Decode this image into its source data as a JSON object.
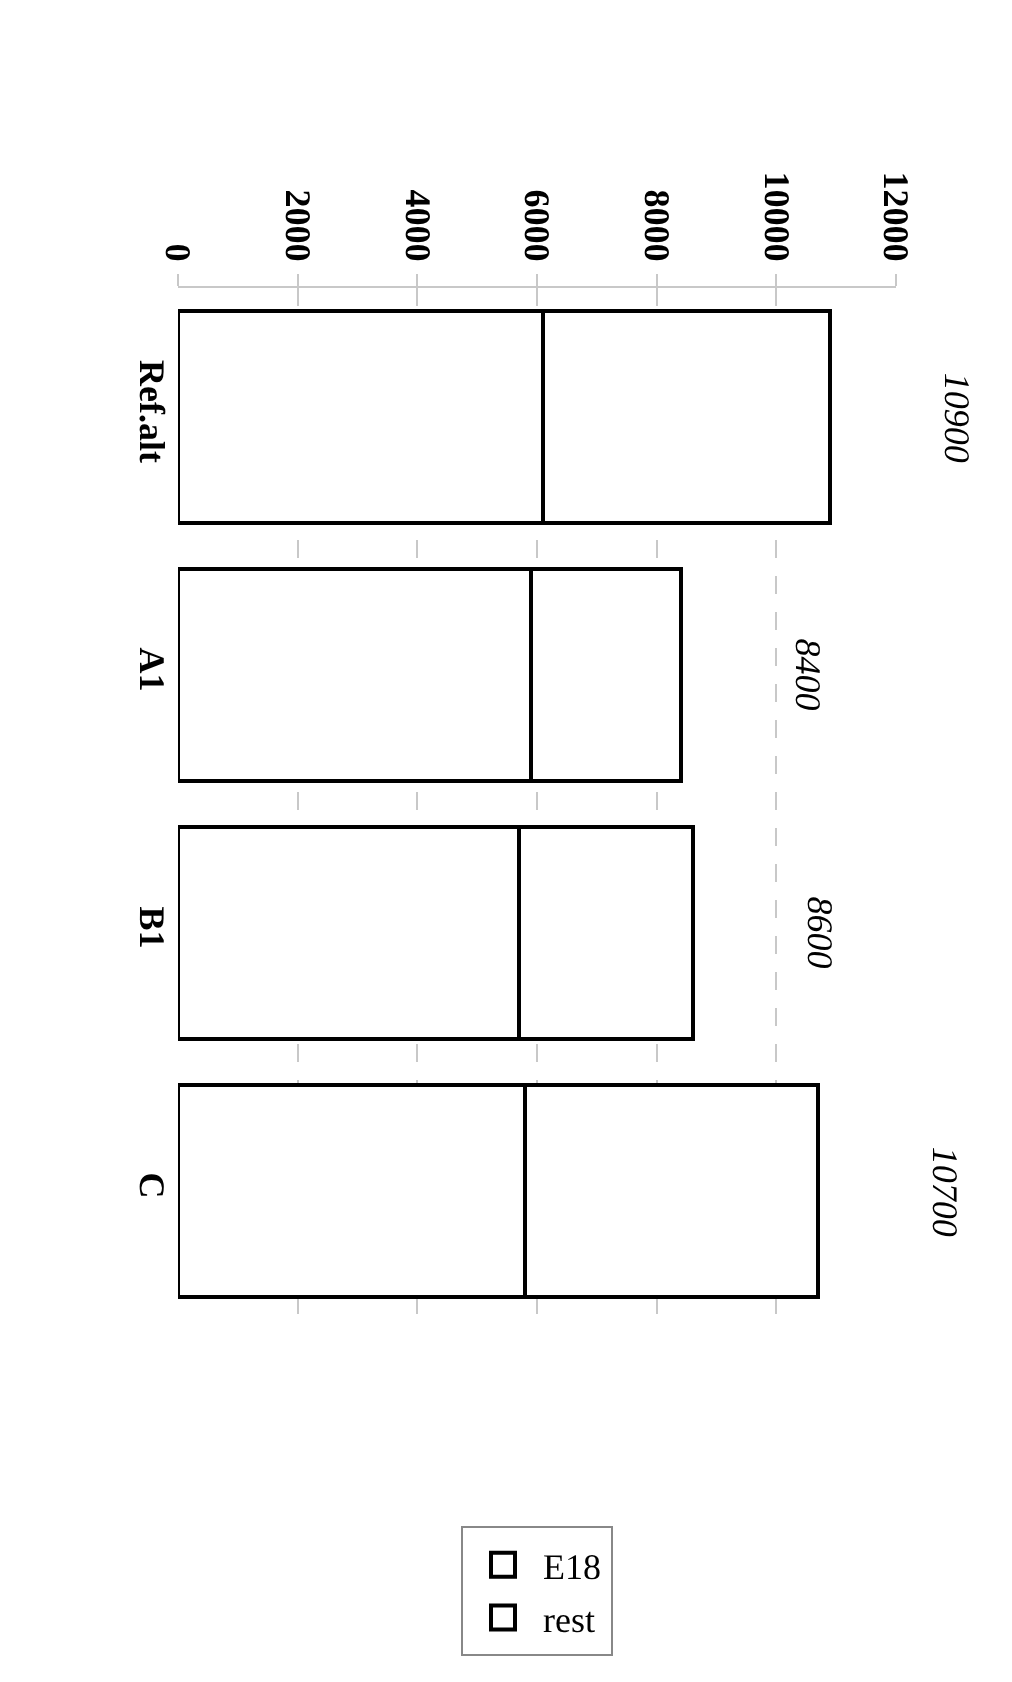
{
  "chart_data": {
    "type": "bar",
    "stacked": true,
    "orientation": "horizontal",
    "categories": [
      "Ref.alt",
      "A1",
      "B1",
      "C"
    ],
    "series": [
      {
        "name": "E18",
        "color": "#ffffff",
        "values": [
          6100,
          5900,
          5700,
          5800
        ]
      },
      {
        "name": "rest",
        "color": "#ffffff",
        "values": [
          4800,
          2500,
          2900,
          4900
        ]
      }
    ],
    "totals": [
      "10900",
      "8400",
      "8600",
      "10700"
    ],
    "xlim": [
      0,
      12000
    ],
    "xticks": [
      0,
      2000,
      4000,
      6000,
      8000,
      10000,
      12000
    ],
    "grid": "x",
    "legend": "bottom"
  }
}
